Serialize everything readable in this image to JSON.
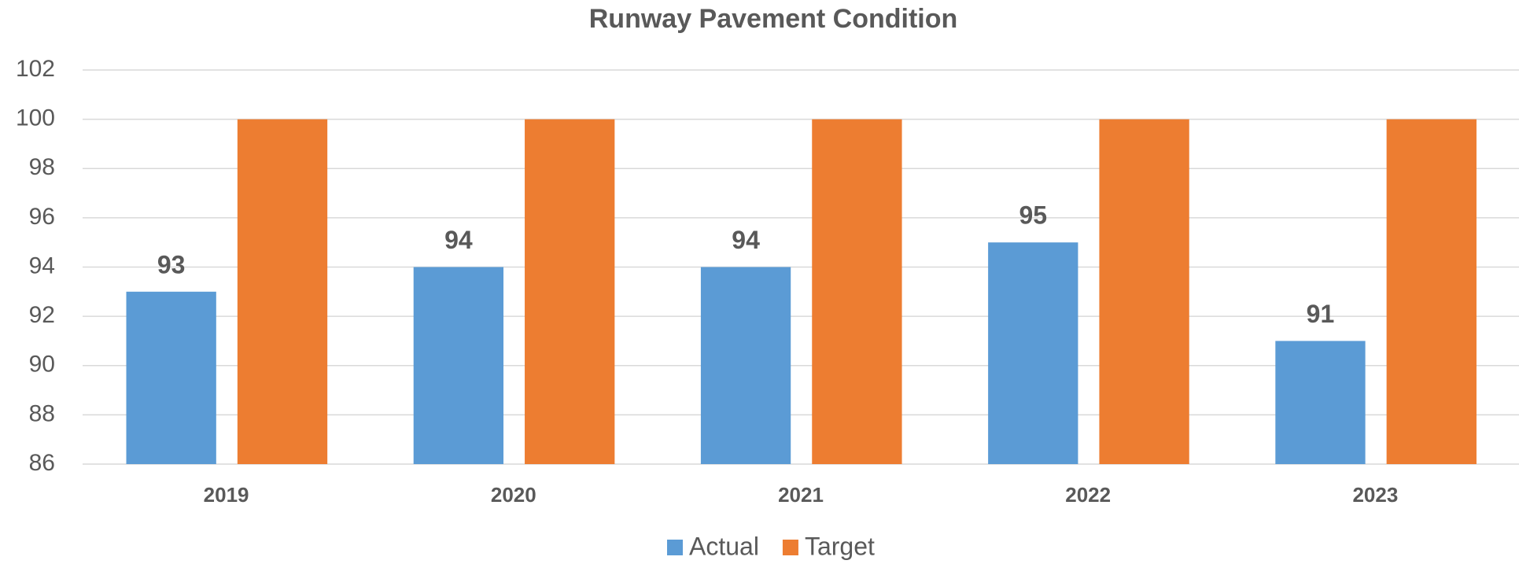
{
  "chart_data": {
    "type": "bar",
    "title": "Runway Pavement Condition",
    "categories": [
      "2019",
      "2020",
      "2021",
      "2022",
      "2023"
    ],
    "series": [
      {
        "name": "Actual",
        "color": "#5b9bd5",
        "values": [
          93,
          94,
          94,
          95,
          91
        ]
      },
      {
        "name": "Target",
        "color": "#ed7d31",
        "values": [
          100,
          100,
          100,
          100,
          100
        ]
      }
    ],
    "ylim": [
      86,
      102
    ],
    "yticks": [
      86,
      88,
      90,
      92,
      94,
      96,
      98,
      100,
      102
    ],
    "grid": true,
    "legend": "bottom"
  }
}
